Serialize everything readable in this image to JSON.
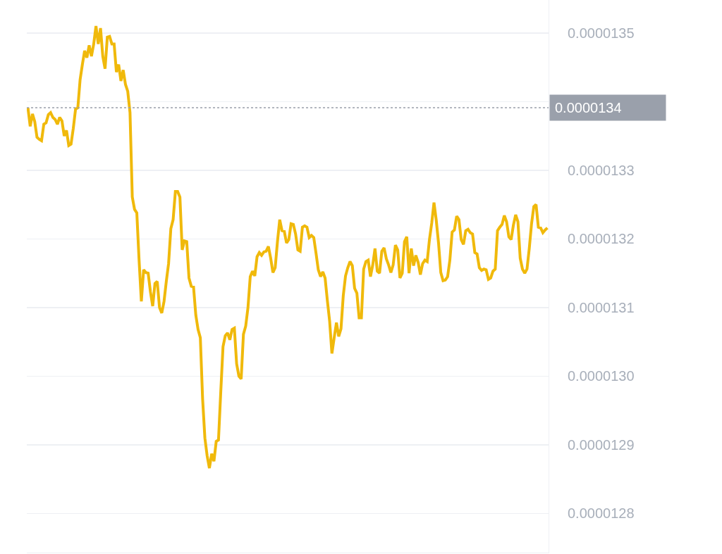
{
  "chart_data": {
    "type": "line",
    "categories": [
      null,
      null,
      null,
      null,
      null,
      null,
      null,
      null,
      null,
      null,
      null,
      null,
      null,
      null,
      null,
      null,
      null,
      null,
      null,
      null,
      null,
      null,
      null,
      null,
      null,
      null,
      null,
      null,
      null,
      null,
      null,
      null,
      null,
      null,
      null,
      null,
      null,
      null,
      null,
      null,
      null,
      null,
      null,
      null,
      null,
      null,
      null,
      null,
      null,
      null,
      null,
      null,
      null,
      null,
      null,
      null,
      null,
      null,
      null,
      null,
      null,
      null,
      null,
      null,
      null,
      null,
      null,
      null,
      null,
      null,
      null,
      null,
      null,
      null,
      null,
      null,
      null,
      null,
      null,
      null,
      null,
      null,
      null,
      null,
      null,
      null,
      null,
      null,
      null,
      null,
      null,
      null,
      null,
      null,
      null,
      null,
      null,
      null,
      null,
      null,
      null,
      null,
      null,
      null,
      null,
      null,
      null,
      null,
      null,
      null,
      null,
      null,
      null,
      null,
      null,
      null,
      null,
      null,
      null,
      null,
      null,
      null,
      null,
      null,
      null,
      null,
      null,
      null,
      null,
      null,
      null,
      null,
      null,
      null,
      null,
      null,
      null,
      null,
      null,
      null,
      null,
      null,
      null,
      null,
      null,
      null,
      null,
      null,
      null,
      null,
      null,
      null,
      null,
      null,
      null,
      null,
      null,
      null,
      null,
      null,
      null,
      null,
      null,
      null,
      null,
      null,
      null,
      null,
      null,
      null,
      null,
      null,
      null,
      null,
      null,
      null,
      null,
      null,
      null,
      null,
      null,
      null,
      null,
      null,
      null,
      null,
      null,
      null,
      null,
      null,
      null,
      null,
      null,
      null,
      null,
      null,
      null,
      null,
      null,
      null,
      null,
      null,
      null,
      null,
      null,
      null,
      null,
      null,
      null,
      null,
      null,
      null,
      null,
      null,
      null,
      null,
      null,
      null,
      null,
      null,
      null,
      null,
      null,
      null,
      null,
      null,
      null,
      null,
      null,
      null
    ],
    "series": [
      {
        "color": "#f0b90b",
        "values": [
          1.3391e-05,
          1.3364e-05,
          1.3382e-05,
          1.3371e-05,
          1.3348e-05,
          1.3345e-05,
          1.3343e-05,
          1.3367e-05,
          1.3369e-05,
          1.3381e-05,
          1.3384e-05,
          1.3377e-05,
          1.3374e-05,
          1.3367e-05,
          1.3377e-05,
          1.3372e-05,
          1.335e-05,
          1.3358e-05,
          1.3336e-05,
          1.3338e-05,
          1.3361e-05,
          1.3389e-05,
          1.3391e-05,
          1.3432e-05,
          1.3454e-05,
          1.3474e-05,
          1.3464e-05,
          1.3482e-05,
          1.3466e-05,
          1.3484e-05,
          1.351e-05,
          1.3484e-05,
          1.3507e-05,
          1.3466e-05,
          1.3448e-05,
          1.3494e-05,
          1.3495e-05,
          1.3484e-05,
          1.3484e-05,
          1.3443e-05,
          1.3454e-05,
          1.343e-05,
          1.3446e-05,
          1.3425e-05,
          1.3415e-05,
          1.3384e-05,
          1.3261e-05,
          1.3243e-05,
          1.3238e-05,
          1.3169e-05,
          1.3109e-05,
          1.3155e-05,
          1.3151e-05,
          1.315e-05,
          1.3123e-05,
          1.3102e-05,
          1.3135e-05,
          1.3138e-05,
          1.31e-05,
          1.3092e-05,
          1.3109e-05,
          1.3138e-05,
          1.3164e-05,
          1.3215e-05,
          1.3228e-05,
          1.3269e-05,
          1.3269e-05,
          1.3261e-05,
          1.3184e-05,
          1.3197e-05,
          1.3196e-05,
          1.3143e-05,
          1.3131e-05,
          1.313e-05,
          1.3089e-05,
          1.3068e-05,
          1.3056e-05,
          1.2967e-05,
          1.291e-05,
          1.2884e-05,
          1.2866e-05,
          1.2887e-05,
          1.2876e-05,
          1.2905e-05,
          1.2907e-05,
          1.2977e-05,
          1.3043e-05,
          1.3059e-05,
          1.3063e-05,
          1.3053e-05,
          1.3068e-05,
          1.307e-05,
          1.3018e-05,
          1.3e-05,
          1.2996e-05,
          1.3061e-05,
          1.3073e-05,
          1.31e-05,
          1.3145e-05,
          1.3153e-05,
          1.3146e-05,
          1.3174e-05,
          1.318e-05,
          1.3176e-05,
          1.3181e-05,
          1.3182e-05,
          1.3189e-05,
          1.3172e-05,
          1.3151e-05,
          1.3158e-05,
          1.3196e-05,
          1.3228e-05,
          1.3212e-05,
          1.3211e-05,
          1.3194e-05,
          1.3199e-05,
          1.3222e-05,
          1.3221e-05,
          1.3207e-05,
          1.3184e-05,
          1.3182e-05,
          1.3217e-05,
          1.3219e-05,
          1.3217e-05,
          1.3202e-05,
          1.3205e-05,
          1.3202e-05,
          1.3179e-05,
          1.3155e-05,
          1.3145e-05,
          1.3152e-05,
          1.3143e-05,
          1.311e-05,
          1.308e-05,
          1.3033e-05,
          1.3056e-05,
          1.3078e-05,
          1.3058e-05,
          1.3069e-05,
          1.3117e-05,
          1.3146e-05,
          1.3158e-05,
          1.3167e-05,
          1.3161e-05,
          1.3128e-05,
          1.3121e-05,
          1.3085e-05,
          1.3085e-05,
          1.3156e-05,
          1.3167e-05,
          1.3169e-05,
          1.3145e-05,
          1.3162e-05,
          1.3186e-05,
          1.3153e-05,
          1.315e-05,
          1.3182e-05,
          1.3187e-05,
          1.3171e-05,
          1.3162e-05,
          1.3151e-05,
          1.3162e-05,
          1.3191e-05,
          1.3184e-05,
          1.3143e-05,
          1.315e-05,
          1.3196e-05,
          1.3203e-05,
          1.315e-05,
          1.3186e-05,
          1.3161e-05,
          1.3176e-05,
          1.3166e-05,
          1.3148e-05,
          1.3164e-05,
          1.3169e-05,
          1.3167e-05,
          1.3199e-05,
          1.3223e-05,
          1.3253e-05,
          1.3227e-05,
          1.3194e-05,
          1.3151e-05,
          1.3139e-05,
          1.314e-05,
          1.3145e-05,
          1.3169e-05,
          1.321e-05,
          1.3213e-05,
          1.3233e-05,
          1.3228e-05,
          1.3199e-05,
          1.3192e-05,
          1.3212e-05,
          1.3214e-05,
          1.3209e-05,
          1.3207e-05,
          1.318e-05,
          1.3178e-05,
          1.3158e-05,
          1.3154e-05,
          1.3156e-05,
          1.3155e-05,
          1.3141e-05,
          1.3143e-05,
          1.3153e-05,
          1.3156e-05,
          1.3212e-05,
          1.3217e-05,
          1.3221e-05,
          1.3234e-05,
          1.3225e-05,
          1.3203e-05,
          1.3199e-05,
          1.322e-05,
          1.3235e-05,
          1.3225e-05,
          1.3172e-05,
          1.3156e-05,
          1.315e-05,
          1.3156e-05,
          1.3186e-05,
          1.3222e-05,
          1.3247e-05,
          1.325e-05,
          1.3217e-05,
          1.3216e-05,
          1.3209e-05,
          1.3213e-05,
          1.3216e-05
        ]
      }
    ],
    "ylim": [
      1.2743e-05,
      1.3548e-05
    ],
    "yticks": [
      {
        "value": 1.28e-05,
        "label": "0.0000128"
      },
      {
        "value": 1.29e-05,
        "label": "0.0000129"
      },
      {
        "value": 1.3e-05,
        "label": "0.0000130"
      },
      {
        "value": 1.31e-05,
        "label": "0.0000131"
      },
      {
        "value": 1.32e-05,
        "label": "0.0000132"
      },
      {
        "value": 1.33e-05,
        "label": "0.0000133"
      },
      {
        "value": 1.34e-05,
        "label": null
      },
      {
        "value": 1.35e-05,
        "label": "0.0000135"
      }
    ],
    "grid": "y",
    "tick_labels": "y",
    "marker": "none",
    "line_style": "solid",
    "ref_lines": [
      {
        "axis": "y",
        "value": 1.3391e-05,
        "label": "0.0000134",
        "color": "#9aa0ab",
        "line_style": "dotted"
      }
    ]
  }
}
